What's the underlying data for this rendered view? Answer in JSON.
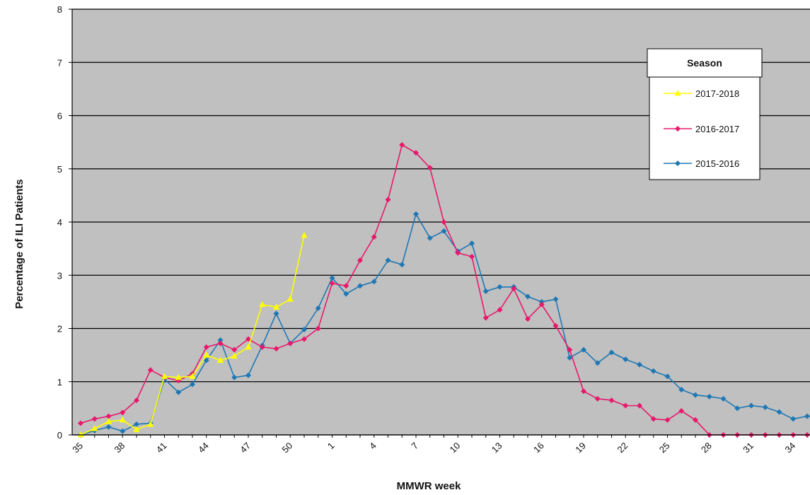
{
  "chart_data": {
    "type": "line",
    "title": "",
    "xlabel": "MMWR week",
    "ylabel": "Percentage of ILI Patients",
    "ylim": [
      0,
      8
    ],
    "yticks": [
      0,
      1,
      2,
      3,
      4,
      5,
      6,
      7,
      8
    ],
    "x_categories": [
      "35",
      "36",
      "37",
      "38",
      "39",
      "40",
      "41",
      "42",
      "43",
      "44",
      "45",
      "46",
      "47",
      "48",
      "49",
      "50",
      "51",
      "52",
      "1",
      "2",
      "3",
      "4",
      "5",
      "6",
      "7",
      "8",
      "9",
      "10",
      "11",
      "12",
      "13",
      "14",
      "15",
      "16",
      "17",
      "18",
      "19",
      "20",
      "21",
      "22",
      "23",
      "24",
      "25",
      "26",
      "27",
      "28",
      "29",
      "30",
      "31",
      "32",
      "33",
      "34",
      "35"
    ],
    "x_tick_labels": [
      "35",
      "38",
      "41",
      "44",
      "47",
      "50",
      "1",
      "4",
      "7",
      "10",
      "13",
      "16",
      "19",
      "22",
      "25",
      "28",
      "31",
      "34"
    ],
    "x_tick_label_step": 3,
    "grid": "horizontal",
    "plot_background": "#c0c0c0",
    "legend": {
      "title": "Season",
      "placement": "top-right",
      "entries": [
        "2017-2018",
        "2016-2017",
        "2015-2016"
      ]
    },
    "series": [
      {
        "name": "2017-2018",
        "color": "#ffff00",
        "marker": "triangle",
        "values": [
          0.0,
          0.12,
          0.25,
          0.28,
          0.1,
          0.2,
          1.1,
          1.08,
          1.1,
          1.5,
          1.4,
          1.48,
          1.65,
          2.45,
          2.4,
          2.55,
          3.75
        ]
      },
      {
        "name": "2016-2017",
        "color": "#e8196b",
        "marker": "diamond",
        "values": [
          0.22,
          0.3,
          0.35,
          0.42,
          0.65,
          1.22,
          1.08,
          1.02,
          1.15,
          1.65,
          1.72,
          1.6,
          1.8,
          1.65,
          1.62,
          1.72,
          1.8,
          2.0,
          2.85,
          2.8,
          3.28,
          3.72,
          4.42,
          5.45,
          5.3,
          5.02,
          4.0,
          3.42,
          3.35,
          2.2,
          2.35,
          2.75,
          2.18,
          2.45,
          2.05,
          1.6,
          0.82,
          0.68,
          0.65,
          0.55,
          0.55,
          0.3,
          0.28,
          0.45,
          0.28,
          0.0,
          0.0,
          0.0,
          0.0,
          0.0,
          0.0,
          0.0,
          0.0
        ]
      },
      {
        "name": "2015-2016",
        "color": "#1f78b4",
        "marker": "diamond",
        "values": [
          0.0,
          0.08,
          0.15,
          0.07,
          0.2,
          0.22,
          1.05,
          0.8,
          0.95,
          1.4,
          1.78,
          1.08,
          1.12,
          1.68,
          2.28,
          1.72,
          1.98,
          2.38,
          2.95,
          2.65,
          2.8,
          2.88,
          3.28,
          3.2,
          4.15,
          3.7,
          3.83,
          3.45,
          3.6,
          2.7,
          2.78,
          2.78,
          2.6,
          2.5,
          2.55,
          1.45,
          1.6,
          1.35,
          1.55,
          1.42,
          1.32,
          1.2,
          1.1,
          0.85,
          0.75,
          0.72,
          0.68,
          0.5,
          0.55,
          0.52,
          0.43,
          0.3,
          0.35
        ]
      }
    ]
  }
}
